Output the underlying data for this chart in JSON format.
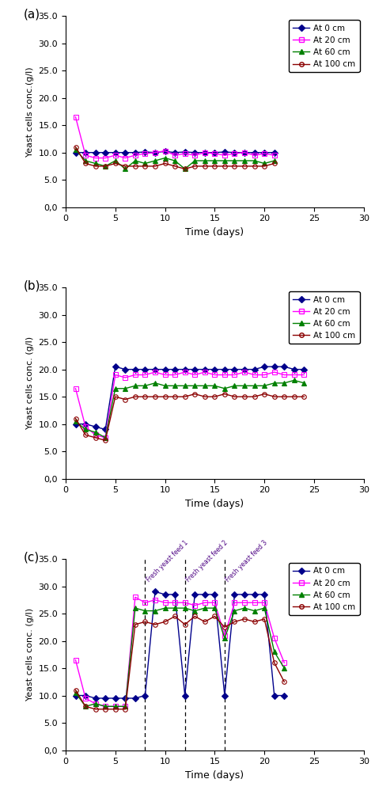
{
  "panel_a": {
    "label": "(a)",
    "ylabel": "Yeast cells conc.(g/l)",
    "xlabel": "Time (days)",
    "xlim": [
      0,
      30
    ],
    "ylim": [
      0.0,
      35.0
    ],
    "ytick_vals": [
      0.0,
      5.0,
      10.0,
      15.0,
      20.0,
      25.0,
      30.0,
      35.0
    ],
    "ytick_labels": [
      "0,0",
      "5.0",
      "10.0",
      "15.0",
      "20.0",
      "25.0",
      "30.0",
      "35.0"
    ],
    "xticks": [
      0,
      5,
      10,
      15,
      20,
      25,
      30
    ],
    "series": {
      "0cm": {
        "color": "#00008B",
        "marker": "D",
        "markersize": 4,
        "markerfacecolor": "#00008B",
        "x": [
          1,
          2,
          3,
          4,
          5,
          6,
          7,
          8,
          9,
          10,
          11,
          12,
          13,
          14,
          15,
          16,
          17,
          18,
          19,
          20,
          21
        ],
        "y": [
          10.0,
          10.0,
          10.0,
          10.0,
          10.0,
          10.0,
          10.0,
          10.1,
          10.0,
          10.2,
          10.0,
          10.1,
          10.0,
          10.0,
          10.0,
          10.1,
          10.0,
          10.0,
          10.0,
          10.0,
          10.0
        ]
      },
      "20cm": {
        "color": "#FF00FF",
        "marker": "s",
        "markersize": 4,
        "markerfacecolor": "none",
        "x": [
          1,
          2,
          3,
          4,
          5,
          6,
          7,
          8,
          9,
          10,
          11,
          12,
          13,
          14,
          15,
          16,
          17,
          18,
          19,
          20,
          21
        ],
        "y": [
          16.5,
          9.5,
          9.0,
          9.0,
          9.5,
          9.0,
          9.5,
          9.8,
          10.0,
          10.3,
          9.5,
          9.8,
          9.5,
          10.0,
          9.8,
          9.5,
          9.8,
          10.0,
          9.5,
          9.8,
          9.5
        ]
      },
      "60cm": {
        "color": "#008000",
        "marker": "^",
        "markersize": 4,
        "markerfacecolor": "#008000",
        "x": [
          1,
          2,
          3,
          4,
          5,
          6,
          7,
          8,
          9,
          10,
          11,
          12,
          13,
          14,
          15,
          16,
          17,
          18,
          19,
          20,
          21
        ],
        "y": [
          10.5,
          8.5,
          8.0,
          7.5,
          8.5,
          7.0,
          8.5,
          8.0,
          8.5,
          9.0,
          8.5,
          7.0,
          8.5,
          8.5,
          8.5,
          8.5,
          8.5,
          8.5,
          8.5,
          8.0,
          8.5
        ]
      },
      "100cm": {
        "color": "#8B0000",
        "marker": "o",
        "markersize": 4,
        "markerfacecolor": "none",
        "x": [
          1,
          2,
          3,
          4,
          5,
          6,
          7,
          8,
          9,
          10,
          11,
          12,
          13,
          14,
          15,
          16,
          17,
          18,
          19,
          20,
          21
        ],
        "y": [
          11.0,
          8.0,
          7.5,
          7.5,
          8.0,
          7.5,
          7.5,
          7.5,
          7.5,
          8.0,
          7.5,
          7.0,
          7.5,
          7.5,
          7.5,
          7.5,
          7.5,
          7.5,
          7.5,
          7.5,
          8.0
        ]
      }
    }
  },
  "panel_b": {
    "label": "(b)",
    "ylabel": "Yeast cells conc. (g/l)",
    "xlabel": "Time (days)",
    "xlim": [
      0,
      30
    ],
    "ylim": [
      0.0,
      35.0
    ],
    "ytick_vals": [
      0.0,
      5.0,
      10.0,
      15.0,
      20.0,
      25.0,
      30.0,
      35.0
    ],
    "ytick_labels": [
      "0,0",
      "5.0",
      "10.0",
      "15.0",
      "20.0",
      "25.0",
      "30.0",
      "35.0"
    ],
    "xticks": [
      0,
      5,
      10,
      15,
      20,
      25,
      30
    ],
    "series": {
      "0cm": {
        "color": "#00008B",
        "marker": "D",
        "markersize": 4,
        "markerfacecolor": "#00008B",
        "x": [
          1,
          2,
          3,
          4,
          5,
          6,
          7,
          8,
          9,
          10,
          11,
          12,
          13,
          14,
          15,
          16,
          17,
          18,
          19,
          20,
          21,
          22,
          23,
          24
        ],
        "y": [
          10.0,
          10.0,
          9.5,
          9.0,
          20.5,
          20.0,
          20.0,
          20.0,
          20.0,
          20.0,
          20.0,
          20.0,
          20.0,
          20.0,
          20.0,
          20.0,
          20.0,
          20.0,
          20.0,
          20.5,
          20.5,
          20.5,
          20.0,
          20.0
        ]
      },
      "20cm": {
        "color": "#FF00FF",
        "marker": "s",
        "markersize": 4,
        "markerfacecolor": "none",
        "x": [
          1,
          2,
          3,
          4,
          5,
          6,
          7,
          8,
          9,
          10,
          11,
          12,
          13,
          14,
          15,
          16,
          17,
          18,
          19,
          20,
          21,
          22,
          23,
          24
        ],
        "y": [
          16.5,
          9.5,
          8.0,
          7.5,
          19.0,
          18.5,
          19.0,
          19.0,
          19.5,
          19.0,
          19.0,
          19.5,
          19.0,
          19.5,
          19.0,
          19.0,
          19.0,
          19.5,
          19.0,
          19.0,
          19.5,
          19.0,
          19.0,
          19.0
        ]
      },
      "60cm": {
        "color": "#008000",
        "marker": "^",
        "markersize": 4,
        "markerfacecolor": "#008000",
        "x": [
          1,
          2,
          3,
          4,
          5,
          6,
          7,
          8,
          9,
          10,
          11,
          12,
          13,
          14,
          15,
          16,
          17,
          18,
          19,
          20,
          21,
          22,
          23,
          24
        ],
        "y": [
          10.5,
          9.0,
          8.5,
          7.5,
          16.5,
          16.5,
          17.0,
          17.0,
          17.5,
          17.0,
          17.0,
          17.0,
          17.0,
          17.0,
          17.0,
          16.5,
          17.0,
          17.0,
          17.0,
          17.0,
          17.5,
          17.5,
          18.0,
          17.5
        ]
      },
      "100cm": {
        "color": "#8B0000",
        "marker": "o",
        "markersize": 4,
        "markerfacecolor": "none",
        "x": [
          1,
          2,
          3,
          4,
          5,
          6,
          7,
          8,
          9,
          10,
          11,
          12,
          13,
          14,
          15,
          16,
          17,
          18,
          19,
          20,
          21,
          22,
          23,
          24
        ],
        "y": [
          11.0,
          8.0,
          7.5,
          7.0,
          15.0,
          14.5,
          15.0,
          15.0,
          15.0,
          15.0,
          15.0,
          15.0,
          15.5,
          15.0,
          15.0,
          15.5,
          15.0,
          15.0,
          15.0,
          15.5,
          15.0,
          15.0,
          15.0,
          15.0
        ]
      }
    }
  },
  "panel_c": {
    "label": "(c)",
    "ylabel": "Yeast cells conc. (g/l)",
    "xlabel": "Time (days)",
    "xlim": [
      0,
      30
    ],
    "ylim": [
      0.0,
      35.0
    ],
    "ytick_vals": [
      0.0,
      5.0,
      10.0,
      15.0,
      20.0,
      25.0,
      30.0,
      35.0
    ],
    "ytick_labels": [
      "0,0",
      "5.0",
      "10.0",
      "15.0",
      "20.0",
      "25.0",
      "30.0",
      "35.0"
    ],
    "xticks": [
      0,
      5,
      10,
      15,
      20,
      25,
      30
    ],
    "vlines": [
      8,
      12,
      16
    ],
    "vline_labels": [
      "Fresh yeast feed 1",
      "Fresh yeast feed 2",
      "Fresh yeast feed 3"
    ],
    "series": {
      "0cm": {
        "color": "#00008B",
        "marker": "D",
        "markersize": 4,
        "markerfacecolor": "#00008B",
        "x": [
          1,
          2,
          3,
          4,
          5,
          6,
          7,
          8,
          9,
          10,
          11,
          12,
          13,
          14,
          15,
          16,
          17,
          18,
          19,
          20,
          21,
          22
        ],
        "y": [
          10.0,
          10.0,
          9.5,
          9.5,
          9.5,
          9.5,
          9.5,
          10.0,
          29.0,
          28.5,
          28.5,
          10.0,
          28.5,
          28.5,
          28.5,
          10.0,
          28.5,
          28.5,
          28.5,
          28.5,
          10.0,
          10.0
        ]
      },
      "20cm": {
        "color": "#FF00FF",
        "marker": "s",
        "markersize": 4,
        "markerfacecolor": "none",
        "x": [
          1,
          2,
          3,
          4,
          5,
          6,
          7,
          8,
          9,
          10,
          11,
          12,
          13,
          14,
          15,
          16,
          17,
          18,
          19,
          20,
          21,
          22
        ],
        "y": [
          16.5,
          9.5,
          8.5,
          8.0,
          8.0,
          8.0,
          28.0,
          27.0,
          27.5,
          27.0,
          27.0,
          27.0,
          26.5,
          27.0,
          27.0,
          21.0,
          27.0,
          27.0,
          27.0,
          27.0,
          20.5,
          16.0
        ]
      },
      "60cm": {
        "color": "#008000",
        "marker": "^",
        "markersize": 4,
        "markerfacecolor": "#008000",
        "x": [
          1,
          2,
          3,
          4,
          5,
          6,
          7,
          8,
          9,
          10,
          11,
          12,
          13,
          14,
          15,
          16,
          17,
          18,
          19,
          20,
          21,
          22
        ],
        "y": [
          10.5,
          8.0,
          8.5,
          8.0,
          8.0,
          8.0,
          26.0,
          25.5,
          25.5,
          26.0,
          26.0,
          26.0,
          25.5,
          26.0,
          26.0,
          20.5,
          25.5,
          26.0,
          25.5,
          26.0,
          18.0,
          15.0
        ]
      },
      "100cm": {
        "color": "#8B0000",
        "marker": "o",
        "markersize": 4,
        "markerfacecolor": "none",
        "x": [
          1,
          2,
          3,
          4,
          5,
          6,
          7,
          8,
          9,
          10,
          11,
          12,
          13,
          14,
          15,
          16,
          17,
          18,
          19,
          20,
          21,
          22
        ],
        "y": [
          11.0,
          8.0,
          7.5,
          7.5,
          7.5,
          7.5,
          23.0,
          23.5,
          23.0,
          23.5,
          24.5,
          23.0,
          24.5,
          23.5,
          24.5,
          22.5,
          23.5,
          24.0,
          23.5,
          24.0,
          16.0,
          12.5
        ]
      }
    }
  },
  "legend_labels": [
    "At 0 cm",
    "At 20 cm",
    "At 60 cm",
    "At 100 cm"
  ]
}
